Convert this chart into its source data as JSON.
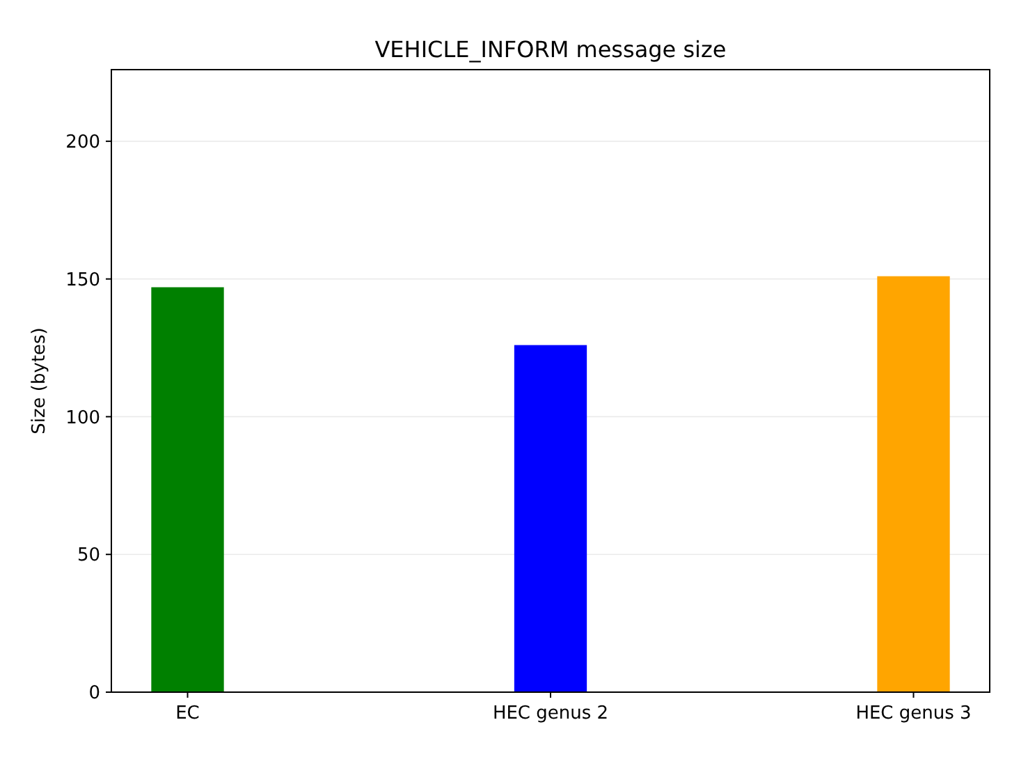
{
  "chart_data": {
    "type": "bar",
    "title": "VEHICLE_INFORM message size",
    "ylabel": "Size (bytes)",
    "categories": [
      "EC",
      "HEC genus 2",
      "HEC genus 3"
    ],
    "values": [
      147,
      126,
      151
    ],
    "colors": [
      "#008000",
      "#0000ff",
      "#ffa500"
    ],
    "ylim": [
      0,
      226
    ],
    "yticks": [
      0,
      50,
      100,
      150,
      200
    ],
    "grid": "y"
  }
}
